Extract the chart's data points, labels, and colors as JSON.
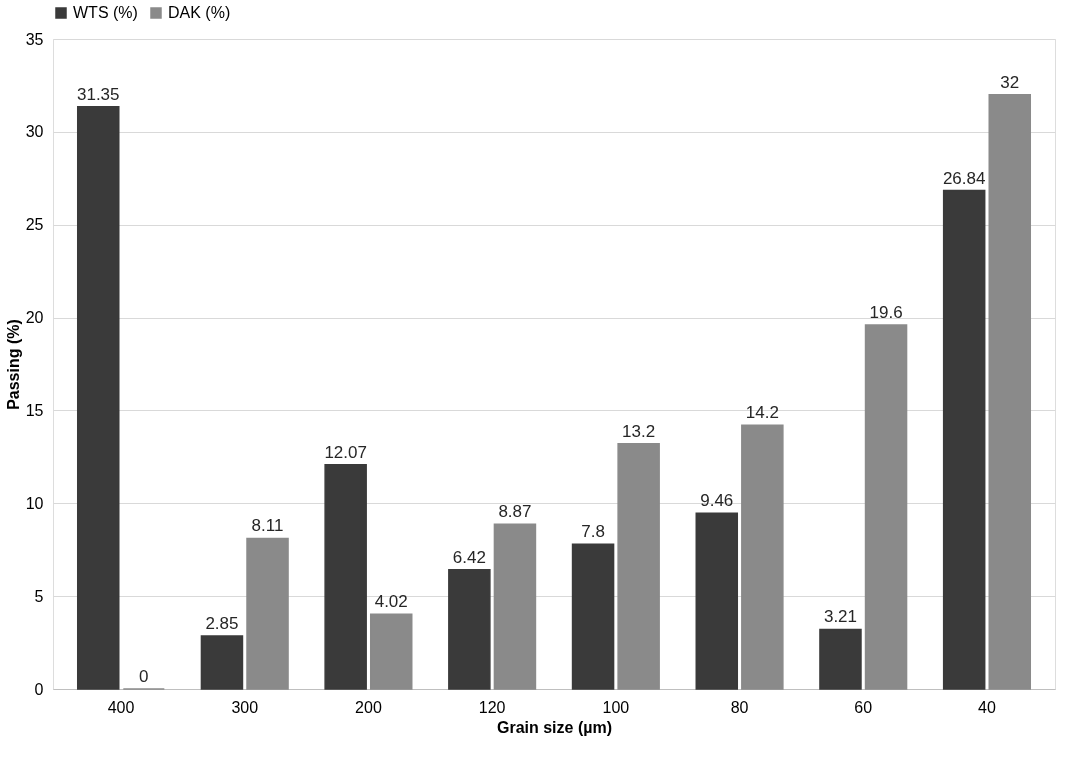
{
  "chart_data": {
    "type": "bar",
    "xlabel": "Grain size (µm)",
    "ylabel": "Passing (%)",
    "categories": [
      "400",
      "300",
      "200",
      "120",
      "100",
      "80",
      "60",
      "40"
    ],
    "series": [
      {
        "name": "WTS (%)",
        "color": "#3a3a3a",
        "values": [
          31.35,
          2.85,
          12.07,
          6.42,
          7.8,
          9.46,
          3.21,
          26.84
        ]
      },
      {
        "name": "DAK (%)",
        "color": "#8a8a8a",
        "values": [
          0,
          8.11,
          4.02,
          8.87,
          13.2,
          14.2,
          19.6,
          32
        ]
      }
    ],
    "ylim": [
      0,
      35
    ],
    "yticks": [
      0,
      5,
      10,
      15,
      20,
      25,
      30,
      35
    ],
    "grid": "y",
    "legend": "top",
    "data_labels": true
  }
}
